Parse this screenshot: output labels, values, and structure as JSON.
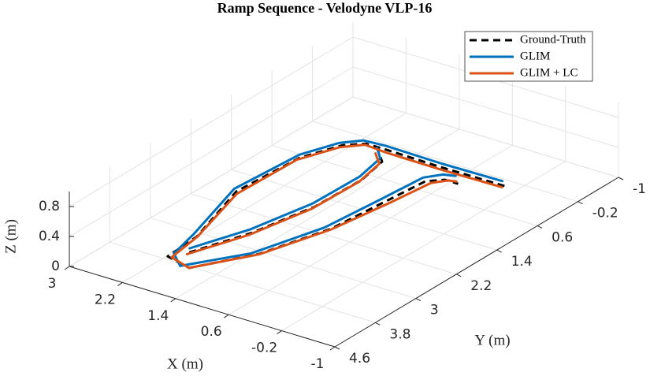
{
  "chart_data": {
    "type": "line3d",
    "title": "Ramp Sequence - Velodyne VLP-16",
    "xlabel": "X (m)",
    "ylabel": "Y (m)",
    "zlabel": "Z (m)",
    "xlim": [
      -1,
      3
    ],
    "ylim": [
      -1,
      4.6
    ],
    "zlim": [
      0,
      1
    ],
    "xticks": [
      3,
      2.2,
      1.4,
      0.6,
      -0.2,
      -1
    ],
    "yticks": [
      -1,
      -0.2,
      0.6,
      1.4,
      2.2,
      3,
      3.8,
      4.6
    ],
    "zticks": [
      0,
      0.4,
      0.8
    ],
    "grid": true,
    "legend": "upper right",
    "series": [
      {
        "name": "Ground-Truth",
        "color": "#000000",
        "dash": true,
        "x": [
          -0.13,
          0.82,
          1.66,
          1.96,
          2.17,
          2.39,
          2.46,
          2.1,
          2.06,
          1.65,
          1.18,
          0.89,
          0.8,
          0.74,
          0.57,
          0.37,
          null,
          1.91,
          1.61,
          1.42,
          1.4,
          1.5,
          1.71
        ],
        "y": [
          0.11,
          0.12,
          0.1,
          0.1,
          0.29,
          0.85,
          2.01,
          3.26,
          3.89,
          4.0,
          3.22,
          2.2,
          1.23,
          0.53,
          0.37,
          0.37,
          null,
          3.66,
          2.81,
          1.82,
          0.92,
          0.39,
          0.19
        ],
        "z": [
          0.1,
          0.1,
          0.1,
          0.1,
          0.1,
          0.1,
          0.1,
          0.1,
          0.1,
          0.1,
          0.1,
          0.1,
          0.1,
          0.1,
          0.1,
          0.1,
          null,
          0.1,
          0.1,
          0.1,
          0.1,
          0.1,
          0.1
        ]
      },
      {
        "name": "GLIM",
        "color": "#0072bd",
        "dash": false,
        "x": [
          -0.05,
          0.85,
          1.7,
          2.02,
          2.22,
          2.42,
          2.5,
          2.15,
          2.02,
          1.75,
          1.25,
          0.95,
          0.86,
          0.8,
          0.65,
          0.5,
          null,
          1.95,
          1.66,
          1.47,
          1.45,
          1.55,
          1.76
        ],
        "y": [
          0.05,
          0.07,
          0.05,
          0.08,
          0.3,
          0.82,
          2.0,
          3.25,
          3.82,
          4.05,
          3.3,
          2.25,
          1.25,
          0.5,
          0.3,
          0.25,
          null,
          3.6,
          2.78,
          1.8,
          0.9,
          0.36,
          0.15
        ],
        "z": [
          0.12,
          0.12,
          0.12,
          0.12,
          0.12,
          0.12,
          0.12,
          0.12,
          0.12,
          0.12,
          0.12,
          0.12,
          0.12,
          0.12,
          0.12,
          0.12,
          null,
          0.12,
          0.12,
          0.12,
          0.12,
          0.12,
          0.12
        ]
      },
      {
        "name": "GLIM + LC",
        "color": "#d95319",
        "dash": false,
        "x": [
          -0.1,
          0.8,
          1.64,
          1.98,
          2.19,
          2.41,
          2.44,
          2.12,
          2.03,
          1.68,
          1.2,
          0.9,
          0.76,
          0.68,
          0.55,
          0.45,
          null,
          1.93,
          1.63,
          1.44,
          1.42,
          1.52,
          1.73
        ],
        "y": [
          0.12,
          0.14,
          0.13,
          0.1,
          0.32,
          0.88,
          2.03,
          3.22,
          3.85,
          3.97,
          3.2,
          2.18,
          1.2,
          0.5,
          0.33,
          0.3,
          null,
          3.68,
          2.84,
          1.85,
          0.95,
          0.42,
          0.22
        ],
        "z": [
          0.08,
          0.08,
          0.08,
          0.08,
          0.08,
          0.08,
          0.08,
          0.08,
          0.08,
          0.08,
          0.08,
          0.08,
          0.08,
          0.08,
          0.08,
          0.08,
          null,
          0.08,
          0.08,
          0.08,
          0.08,
          0.08,
          0.08
        ]
      }
    ]
  }
}
